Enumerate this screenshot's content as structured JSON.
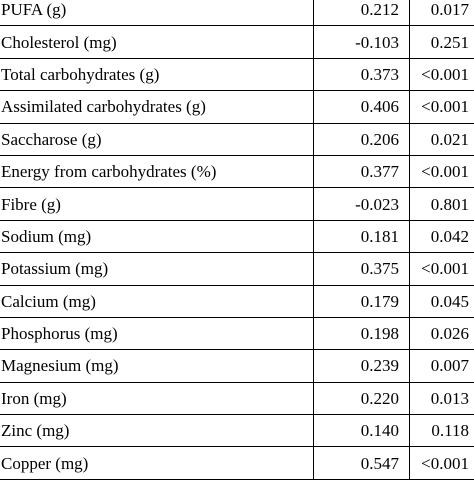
{
  "table": {
    "rows": [
      {
        "label": "PUFA (g)",
        "coefficient": "0.212",
        "p_value": "0.017"
      },
      {
        "label": "Cholesterol (mg)",
        "coefficient": "-0.103",
        "p_value": "0.251"
      },
      {
        "label": "Total carbohydrates (g)",
        "coefficient": "0.373",
        "p_value": "<0.001"
      },
      {
        "label": "Assimilated carbohydrates (g)",
        "coefficient": "0.406",
        "p_value": "<0.001"
      },
      {
        "label": "Saccharose (g)",
        "coefficient": "0.206",
        "p_value": "0.021"
      },
      {
        "label": "Energy from carbohydrates (%)",
        "coefficient": "0.377",
        "p_value": "<0.001"
      },
      {
        "label": "Fibre (g)",
        "coefficient": "-0.023",
        "p_value": "0.801"
      },
      {
        "label": "Sodium (mg)",
        "coefficient": "0.181",
        "p_value": "0.042"
      },
      {
        "label": "Potassium (mg)",
        "coefficient": "0.375",
        "p_value": "<0.001"
      },
      {
        "label": "Calcium (mg)",
        "coefficient": "0.179",
        "p_value": "0.045"
      },
      {
        "label": "Phosphorus (mg)",
        "coefficient": "0.198",
        "p_value": "0.026"
      },
      {
        "label": "Magnesium (mg)",
        "coefficient": "0.239",
        "p_value": "0.007"
      },
      {
        "label": "Iron (mg)",
        "coefficient": "0.220",
        "p_value": "0.013"
      },
      {
        "label": "Zinc (mg)",
        "coefficient": "0.140",
        "p_value": "0.118"
      },
      {
        "label": "Copper (mg)",
        "coefficient": "0.547",
        "p_value": "<0.001"
      }
    ]
  }
}
